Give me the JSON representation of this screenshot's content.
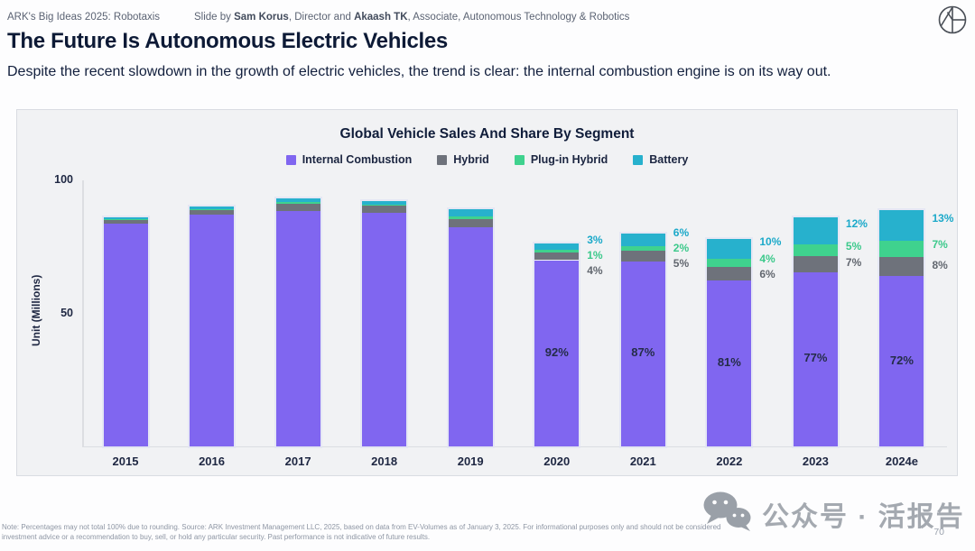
{
  "header": {
    "breadcrumb": "ARK's Big Ideas 2025: Robotaxis",
    "byline": {
      "prefix": "Slide by ",
      "author1": "Sam Korus",
      "middle": ", Director and ",
      "author2": "Akaash TK",
      "suffix": ", Associate, Autonomous Technology & Robotics"
    },
    "logo": "ark-logo"
  },
  "title": "The Future Is Autonomous Electric Vehicles",
  "subtitle": "Despite the recent slowdown in the growth of electric vehicles, the trend is clear: the internal combustion engine is on its way out.",
  "chart_data": {
    "type": "bar",
    "stacked": true,
    "title": "Global Vehicle Sales And Share By Segment",
    "xlabel": "",
    "ylabel": "Unit (Millions)",
    "yticks": [
      100,
      50
    ],
    "ylim": [
      0,
      105
    ],
    "grid": false,
    "legend_position": "top",
    "unit": "millions of vehicles",
    "categories": [
      "2015",
      "2016",
      "2017",
      "2018",
      "2019",
      "2020",
      "2021",
      "2022",
      "2023",
      "2024e"
    ],
    "series": [
      {
        "name": "Internal Combustion",
        "key": "internal_combustion",
        "color": "#8066f0",
        "values": [
          83.7,
          87.1,
          88.5,
          87.8,
          82.5,
          70.0,
          69.5,
          62.5,
          65.5,
          64.0
        ]
      },
      {
        "name": "Hybrid",
        "key": "hybrid",
        "color": "#6e727b",
        "values": [
          1.5,
          1.7,
          2.8,
          2.7,
          3.0,
          3.0,
          4.0,
          4.8,
          6.0,
          7.1
        ]
      },
      {
        "name": "Plug-in Hybrid",
        "key": "plug_in_hybrid",
        "color": "#3fd28e",
        "values": [
          0.3,
          0.3,
          0.5,
          0.3,
          1.0,
          0.9,
          1.7,
          3.1,
          4.3,
          6.2
        ]
      },
      {
        "name": "Battery",
        "key": "battery",
        "color": "#27b1cd",
        "values": [
          0.7,
          1.0,
          1.4,
          1.4,
          2.7,
          2.3,
          4.8,
          7.7,
          10.2,
          11.6
        ]
      }
    ],
    "share_labels": {
      "internal_combustion": [
        "",
        "",
        "",
        "",
        "",
        "92%",
        "87%",
        "81%",
        "77%",
        "72%"
      ],
      "hybrid": [
        "",
        "",
        "",
        "",
        "",
        "4%",
        "5%",
        "6%",
        "7%",
        "8%"
      ],
      "plug_in_hybrid": [
        "",
        "",
        "",
        "",
        "",
        "1%",
        "2%",
        "4%",
        "5%",
        "7%"
      ],
      "battery": [
        "",
        "",
        "",
        "",
        "",
        "3%",
        "6%",
        "10%",
        "12%",
        "13%"
      ]
    },
    "label_colors": {
      "internal_combustion": "#242c48",
      "hybrid": "#62676f",
      "plug_in_hybrid": "#3cc98b",
      "battery": "#1ba9c9"
    }
  },
  "watermark": {
    "text": "公众号 · 活报告",
    "icon": "wechat-icon"
  },
  "footer": {
    "note_line1": "Note: Percentages may not total 100% due to rounding. Source: ARK Investment Management LLC, 2025, based on data from EV-Volumes as of January 3, 2025. For informational purposes only and should not be considered",
    "note_line2": "investment advice or a recommendation to buy, sell, or hold any particular security. Past performance is not indicative of future results.",
    "page_number": "70"
  }
}
